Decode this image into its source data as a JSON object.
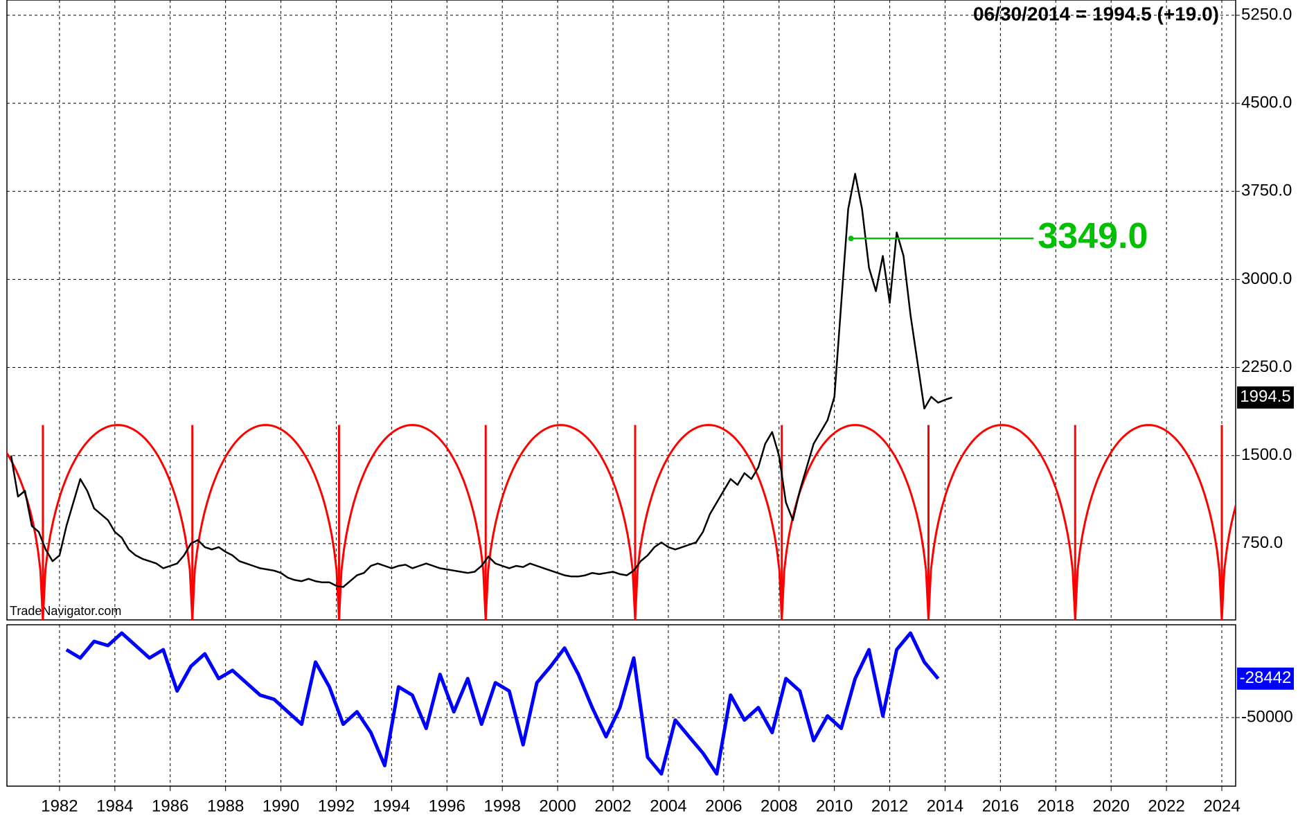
{
  "chart_data": [
    {
      "type": "line",
      "header": "06/30/2014 = 1994.5 (+19.0)",
      "watermark": "TradeNavigator.com",
      "xlim": [
        1980.1,
        2024.5
      ],
      "xticks": [
        1982,
        1984,
        1986,
        1988,
        1990,
        1992,
        1994,
        1996,
        1998,
        2000,
        2002,
        2004,
        2006,
        2008,
        2010,
        2012,
        2014,
        2016,
        2018,
        2020,
        2022,
        2024
      ],
      "ylim": [
        100,
        5380
      ],
      "yticks": [
        {
          "value": 750,
          "label": "750.0"
        },
        {
          "value": 1500,
          "label": "1500.0"
        },
        {
          "value": 2250,
          "label": "2250.0"
        },
        {
          "value": 3000,
          "label": "3000.0"
        },
        {
          "value": 3750,
          "label": "3750.0"
        },
        {
          "value": 4500,
          "label": "4500.0"
        },
        {
          "value": 5250,
          "label": "5250.0"
        }
      ],
      "grid": true,
      "series": [
        {
          "color": "#000000",
          "x": [
            1980.25,
            1980.5,
            1980.75,
            1981,
            1981.25,
            1981.5,
            1981.75,
            1982,
            1982.25,
            1982.5,
            1982.75,
            1983,
            1983.25,
            1983.5,
            1983.75,
            1984,
            1984.25,
            1984.5,
            1984.75,
            1985,
            1985.25,
            1985.5,
            1985.75,
            1986,
            1986.25,
            1986.5,
            1986.75,
            1987,
            1987.25,
            1987.5,
            1987.75,
            1988,
            1988.25,
            1988.5,
            1988.75,
            1989,
            1989.25,
            1989.5,
            1989.75,
            1990,
            1990.25,
            1990.5,
            1990.75,
            1991,
            1991.25,
            1991.5,
            1991.75,
            1992,
            1992.25,
            1992.5,
            1992.75,
            1993,
            1993.25,
            1993.5,
            1993.75,
            1994,
            1994.25,
            1994.5,
            1994.75,
            1995,
            1995.25,
            1995.5,
            1995.75,
            1996,
            1996.25,
            1996.5,
            1996.75,
            1997,
            1997.25,
            1997.5,
            1997.75,
            1998,
            1998.25,
            1998.5,
            1998.75,
            1999,
            1999.25,
            1999.5,
            1999.75,
            2000,
            2000.25,
            2000.5,
            2000.75,
            2001,
            2001.25,
            2001.5,
            2001.75,
            2002,
            2002.25,
            2002.5,
            2002.75,
            2003,
            2003.25,
            2003.5,
            2003.75,
            2004,
            2004.25,
            2004.5,
            2004.75,
            2005,
            2005.25,
            2005.5,
            2005.75,
            2006,
            2006.25,
            2006.5,
            2006.75,
            2007,
            2007.25,
            2007.5,
            2007.75,
            2008,
            2008.25,
            2008.5,
            2008.75,
            2009,
            2009.25,
            2009.5,
            2009.75,
            2010,
            2010.25,
            2010.5,
            2010.75,
            2011,
            2011.25,
            2011.5,
            2011.75,
            2012,
            2012.25,
            2012.5,
            2012.75,
            2013,
            2013.25,
            2013.5,
            2013.75,
            2014,
            2014.25
          ],
          "values": [
            1500,
            1150,
            1200,
            900,
            850,
            700,
            600,
            650,
            900,
            1100,
            1300,
            1200,
            1050,
            1000,
            950,
            850,
            800,
            700,
            650,
            620,
            600,
            580,
            540,
            560,
            580,
            650,
            750,
            780,
            720,
            700,
            720,
            680,
            650,
            600,
            580,
            560,
            540,
            530,
            520,
            500,
            460,
            440,
            430,
            450,
            430,
            420,
            420,
            390,
            380,
            430,
            480,
            500,
            560,
            580,
            560,
            540,
            560,
            570,
            540,
            560,
            580,
            560,
            540,
            530,
            520,
            510,
            500,
            510,
            560,
            640,
            580,
            560,
            540,
            560,
            550,
            580,
            560,
            540,
            520,
            500,
            480,
            470,
            470,
            480,
            500,
            490,
            500,
            510,
            490,
            480,
            520,
            600,
            650,
            720,
            760,
            720,
            700,
            720,
            740,
            760,
            850,
            1000,
            1100,
            1200,
            1300,
            1250,
            1350,
            1300,
            1400,
            1600,
            1700,
            1500,
            1100,
            950,
            1200,
            1400,
            1600,
            1700,
            1800,
            2000,
            2800,
            3600,
            3900,
            3600,
            3100,
            2900,
            3200,
            2800,
            3400,
            3200,
            2700,
            2300,
            1900,
            2000,
            1950,
            1975,
            1994.5
          ],
          "last_label": "1994.5"
        }
      ],
      "cycle": {
        "color": "#ff0000",
        "peak": 1760,
        "lows": [
          1981.4,
          1986.8,
          1992.1,
          1997.4,
          2002.8,
          2008.1,
          2013.4,
          2018.7,
          2024.0
        ]
      },
      "level": {
        "color": "#00c000",
        "value": 3349,
        "label": "3349.0",
        "x": [
          2010.6,
          2017.2
        ]
      }
    },
    {
      "type": "line",
      "ylim": [
        -88000,
        1400
      ],
      "yticks": [
        {
          "value": -50000,
          "label": "-50000"
        }
      ],
      "grid": true,
      "series": [
        {
          "color": "#0000ff",
          "x": [
            1982.25,
            1982.75,
            1983.25,
            1983.75,
            1984.25,
            1984.75,
            1985.25,
            1985.75,
            1986.25,
            1986.75,
            1987.25,
            1987.75,
            1988.25,
            1988.75,
            1989.25,
            1989.75,
            1990.25,
            1990.75,
            1991.25,
            1991.75,
            1992.25,
            1992.75,
            1993.25,
            1993.75,
            1994.25,
            1994.75,
            1995.25,
            1995.75,
            1996.25,
            1996.75,
            1997.25,
            1997.75,
            1998.25,
            1998.75,
            1999.25,
            1999.75,
            2000.25,
            2000.75,
            2001.25,
            2001.75,
            2002.25,
            2002.75,
            2003.25,
            2003.75,
            2004.25,
            2004.75,
            2005.25,
            2005.75,
            2006.25,
            2006.75,
            2007.25,
            2007.75,
            2008.25,
            2008.75,
            2009.25,
            2009.75,
            2010.25,
            2010.75,
            2011.25,
            2011.75,
            2012.25,
            2012.75,
            2013.25,
            2013.75
          ],
          "values": [
            -12400,
            -17000,
            -7800,
            -10100,
            -3200,
            -10100,
            -17000,
            -12400,
            -35300,
            -21600,
            -14700,
            -28400,
            -23900,
            -30700,
            -37600,
            -39900,
            -46800,
            -53700,
            -19300,
            -33000,
            -53700,
            -46800,
            -58300,
            -76600,
            -33000,
            -37600,
            -56000,
            -26100,
            -46800,
            -28400,
            -53700,
            -30700,
            -35300,
            -65100,
            -30700,
            -21600,
            -11500,
            -26100,
            -44500,
            -60600,
            -44500,
            -17000,
            -72000,
            -81200,
            -51400,
            -60600,
            -69700,
            -81200,
            -37600,
            -51400,
            -44500,
            -58300,
            -28400,
            -35300,
            -62800,
            -49100,
            -56000,
            -28400,
            -12400,
            -49100,
            -12400,
            -3200,
            -19300,
            -28442
          ],
          "last_label": "-28442"
        }
      ]
    }
  ]
}
